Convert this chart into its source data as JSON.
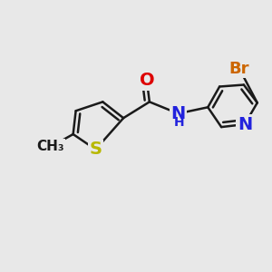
{
  "background_color": "#e8e8e8",
  "bond_color": "#1a1a1a",
  "bond_width": 1.8,
  "atoms": {
    "S": {
      "color": "#b8b800",
      "fontsize": 14
    },
    "N": {
      "color": "#2222dd",
      "fontsize": 14
    },
    "O": {
      "color": "#dd0000",
      "fontsize": 14
    },
    "Br": {
      "color": "#cc6600",
      "fontsize": 13
    },
    "NH": {
      "color": "#2222dd",
      "fontsize": 14
    },
    "CH3": {
      "color": "#1a1a1a",
      "fontsize": 11
    }
  },
  "figsize": [
    3.0,
    3.0
  ],
  "dpi": 100,
  "xlim": [
    0,
    300
  ],
  "ylim": [
    0,
    300
  ]
}
